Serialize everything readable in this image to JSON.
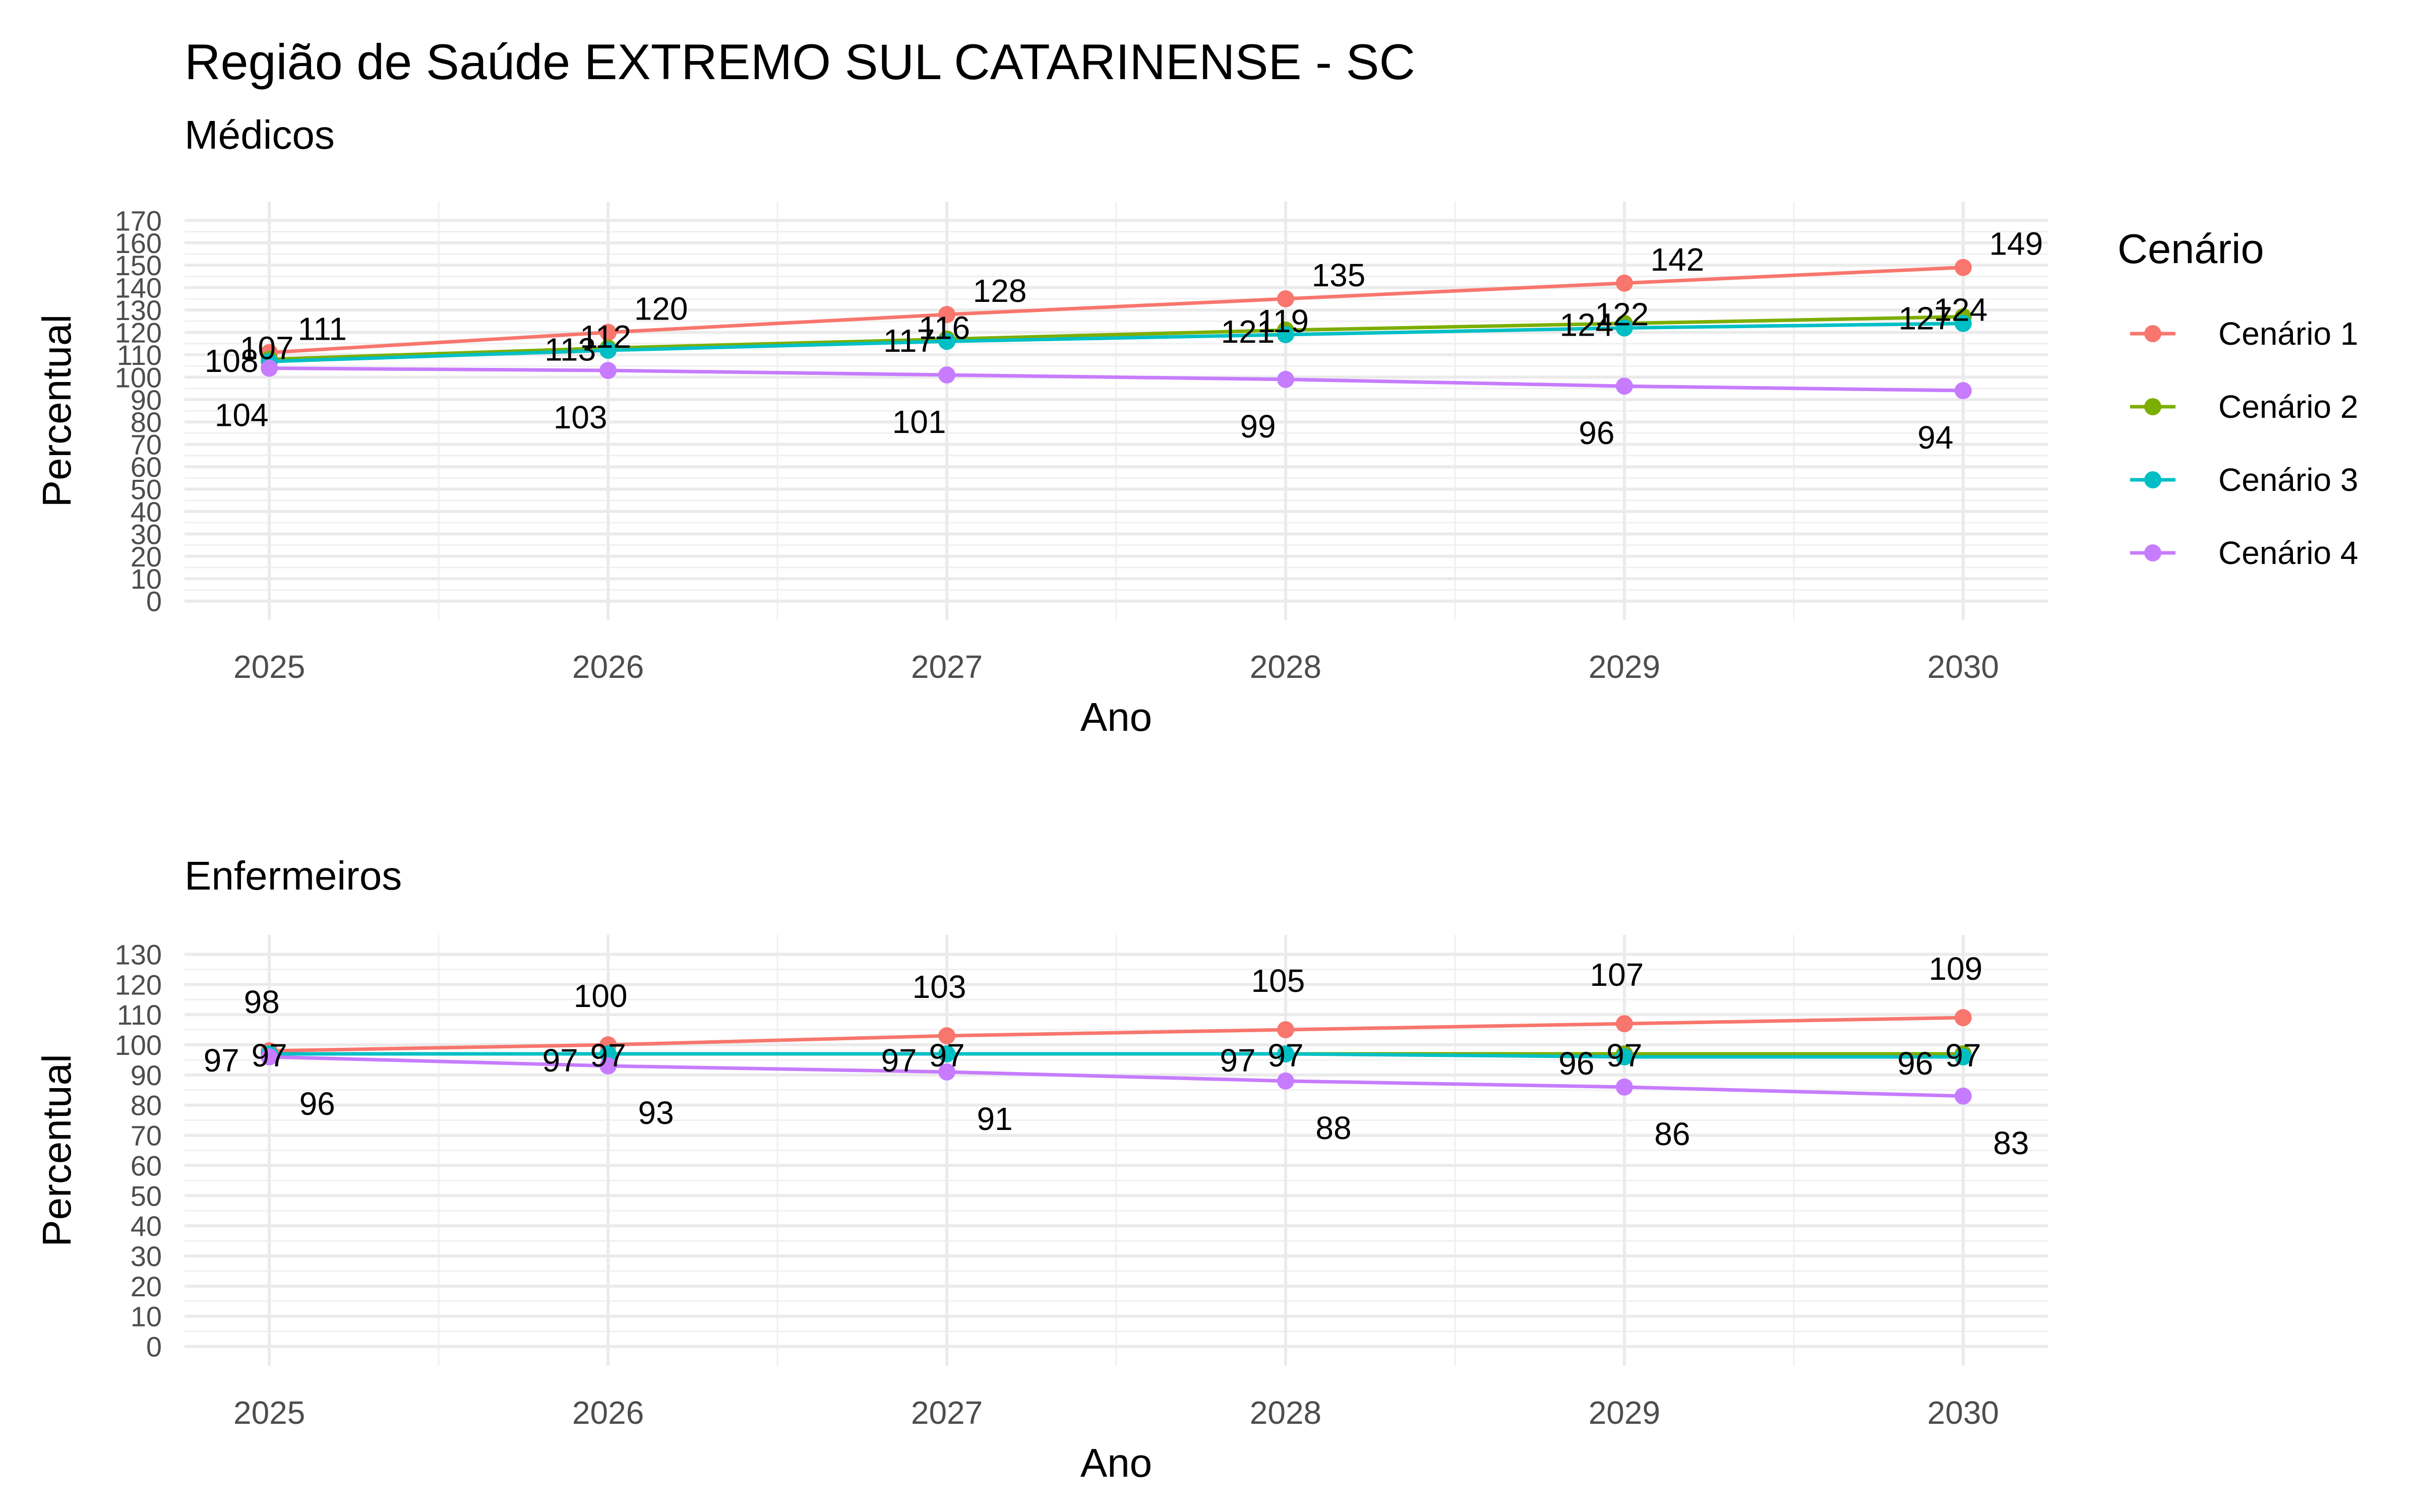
{
  "title": "Região de Saúde EXTREMO SUL CATARINENSE - SC",
  "legend": {
    "title": "Cenário",
    "placement": "right",
    "items": [
      {
        "name": "Cenário 1",
        "color": "#F8766D"
      },
      {
        "name": "Cenário 2",
        "color": "#7CAE00"
      },
      {
        "name": "Cenário 3",
        "color": "#00BFC4"
      },
      {
        "name": "Cenário 4",
        "color": "#C77CFF"
      }
    ]
  },
  "chart_data": [
    {
      "type": "line",
      "subtitle": "Médicos",
      "xlabel": "Ano",
      "ylabel": "Percentual",
      "x": [
        2025,
        2026,
        2027,
        2028,
        2029,
        2030
      ],
      "ylim": [
        0,
        170
      ],
      "yticks": [
        0,
        10,
        20,
        30,
        40,
        50,
        60,
        70,
        80,
        90,
        100,
        110,
        120,
        130,
        140,
        150,
        160,
        170
      ],
      "grid": true,
      "series": [
        {
          "name": "Cenário 1",
          "values": [
            111,
            120,
            128,
            135,
            142,
            149
          ],
          "labels": [
            "111",
            "120",
            "128",
            "135",
            "142",
            "149"
          ]
        },
        {
          "name": "Cenário 2",
          "values": [
            108,
            113,
            117,
            121,
            124,
            127
          ],
          "labels": [
            "108",
            "113",
            "117",
            "121",
            "124",
            "127"
          ]
        },
        {
          "name": "Cenário 3",
          "values": [
            107,
            112,
            116,
            119,
            122,
            124
          ],
          "labels": [
            "107",
            "112",
            "116",
            "119",
            "122",
            "124"
          ]
        },
        {
          "name": "Cenário 4",
          "values": [
            104,
            103,
            101,
            99,
            96,
            94
          ],
          "labels": [
            "104",
            "103",
            "101",
            "99",
            "96",
            "94"
          ]
        }
      ]
    },
    {
      "type": "line",
      "subtitle": "Enfermeiros",
      "xlabel": "Ano",
      "ylabel": "Percentual",
      "x": [
        2025,
        2026,
        2027,
        2028,
        2029,
        2030
      ],
      "ylim": [
        0,
        130
      ],
      "yticks": [
        0,
        10,
        20,
        30,
        40,
        50,
        60,
        70,
        80,
        90,
        100,
        110,
        120,
        130
      ],
      "grid": true,
      "series": [
        {
          "name": "Cenário 1",
          "values": [
            98,
            100,
            103,
            105,
            107,
            109
          ],
          "labels": [
            "98",
            "100",
            "103",
            "105",
            "107",
            "109"
          ]
        },
        {
          "name": "Cenário 2",
          "values": [
            97,
            97,
            97,
            97,
            97,
            97
          ],
          "labels": [
            "97",
            "97",
            "97",
            "97",
            "97",
            "97"
          ]
        },
        {
          "name": "Cenário 3",
          "values": [
            97,
            97,
            97,
            97,
            96,
            96
          ],
          "labels": [
            "97",
            "97",
            "97",
            "97",
            "96",
            "96"
          ]
        },
        {
          "name": "Cenário 4",
          "values": [
            96,
            93,
            91,
            88,
            86,
            83
          ],
          "labels": [
            "96",
            "93",
            "91",
            "88",
            "86",
            "83"
          ]
        }
      ]
    }
  ]
}
